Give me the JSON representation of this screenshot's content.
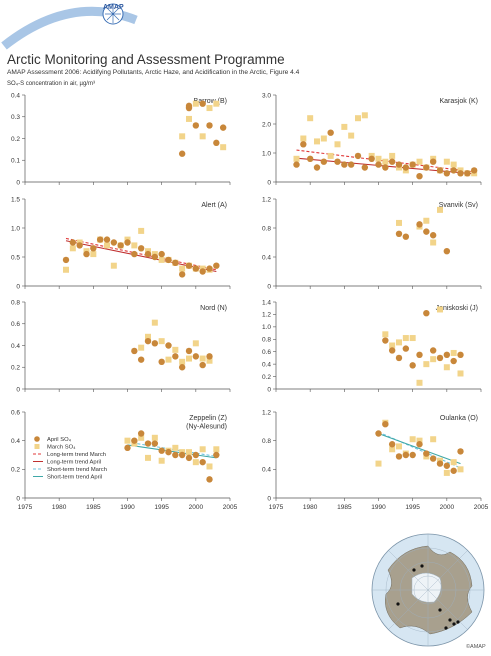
{
  "header": {
    "logo_text": "AMAP",
    "title": "Arctic Monitoring and Assessment Programme",
    "subtitle": "AMAP Assessment 2006: Acidifying Pollutants, Arctic Haze, and Acidification in the Arctic, Figure 4.4",
    "unit_label": "SO₄-S concentration in air, µg/m³"
  },
  "credit": "©AMAP",
  "colors": {
    "april": "#c8873a",
    "march": "#f2d48a",
    "longtrend_march": "#e03a3a",
    "longtrend_april": "#c03030",
    "shorttrend_march": "#6ec3df",
    "shorttrend_april": "#3fa8a8",
    "axis": "#555555"
  },
  "legend": [
    {
      "kind": "april",
      "label": "April SO₄"
    },
    {
      "kind": "march",
      "label": "March SO₄"
    },
    {
      "kind": "longtrend_march",
      "label": "Long-term trend March"
    },
    {
      "kind": "longtrend_april",
      "label": "Long-term trend April"
    },
    {
      "kind": "shorttrend_march",
      "label": "Short-term trend March"
    },
    {
      "kind": "shorttrend_april",
      "label": "Short-term trend April"
    }
  ],
  "chart_data": [
    {
      "type": "scatter",
      "title": "Barrow (B)",
      "xlim": [
        1975,
        2005
      ],
      "ylim": [
        0,
        0.4
      ],
      "yticks": [
        "0",
        "0.1",
        "0.2",
        "0.3",
        "0.4"
      ],
      "xticks": [],
      "series": [
        {
          "name": "April SO₄",
          "x": [
            1998,
            1999,
            2000,
            2001,
            2002,
            2003,
            2004,
            1999
          ],
          "y": [
            0.13,
            0.34,
            0.26,
            0.36,
            0.26,
            0.18,
            0.25,
            0.35
          ]
        },
        {
          "name": "March SO₄",
          "x": [
            1998,
            1999,
            2000,
            2001,
            2002,
            2003,
            2004
          ],
          "y": [
            0.21,
            0.29,
            0.36,
            0.21,
            0.34,
            0.36,
            0.16
          ]
        }
      ],
      "trends": []
    },
    {
      "type": "scatter",
      "title": "Karasjok (K)",
      "xlim": [
        1975,
        2005
      ],
      "ylim": [
        0,
        3.0
      ],
      "yticks": [
        "0",
        "1.0",
        "2.0",
        "3.0"
      ],
      "xticks": [],
      "series": [
        {
          "name": "April SO₄",
          "x": [
            1978,
            1979,
            1980,
            1981,
            1982,
            1983,
            1984,
            1985,
            1986,
            1987,
            1988,
            1989,
            1990,
            1991,
            1992,
            1993,
            1994,
            1995,
            1996,
            1997,
            1998,
            1999,
            2000,
            2001,
            2002,
            2003,
            2004
          ],
          "y": [
            0.6,
            1.3,
            0.8,
            0.5,
            0.7,
            1.7,
            0.7,
            0.6,
            0.6,
            0.9,
            0.5,
            0.8,
            0.6,
            0.5,
            0.7,
            0.6,
            0.5,
            0.6,
            0.2,
            0.5,
            0.7,
            0.4,
            0.3,
            0.4,
            0.3,
            0.3,
            0.4
          ]
        },
        {
          "name": "March SO₄",
          "x": [
            1978,
            1979,
            1980,
            1981,
            1982,
            1983,
            1984,
            1985,
            1986,
            1987,
            1988,
            1989,
            1990,
            1991,
            1992,
            1993,
            1994,
            1995,
            1996,
            1997,
            1998,
            1999,
            2000,
            2001,
            2002,
            2003,
            2004
          ],
          "y": [
            0.8,
            1.5,
            2.2,
            1.4,
            1.5,
            0.9,
            1.3,
            1.9,
            1.6,
            2.2,
            2.3,
            0.9,
            0.8,
            0.7,
            0.9,
            0.5,
            0.4,
            0.6,
            0.7,
            0.5,
            0.8,
            0.4,
            0.7,
            0.6,
            0.4,
            0.3,
            0.3
          ]
        }
      ],
      "trends": [
        {
          "kind": "longtrend_march",
          "x": [
            1978,
            2004
          ],
          "y": [
            1.1,
            0.35
          ]
        },
        {
          "kind": "longtrend_april",
          "x": [
            1978,
            2004
          ],
          "y": [
            0.82,
            0.28
          ]
        }
      ]
    },
    {
      "type": "scatter",
      "title": "Alert (A)",
      "xlim": [
        1975,
        2005
      ],
      "ylim": [
        0,
        1.5
      ],
      "yticks": [
        "0",
        "0.5",
        "1.0",
        "1.5"
      ],
      "xticks": [],
      "series": [
        {
          "name": "April SO₄",
          "x": [
            1981,
            1982,
            1983,
            1984,
            1985,
            1986,
            1987,
            1988,
            1989,
            1990,
            1991,
            1992,
            1993,
            1994,
            1995,
            1996,
            1997,
            1998,
            1999,
            2000,
            2001,
            2002,
            2003
          ],
          "y": [
            0.45,
            0.75,
            0.7,
            0.55,
            0.65,
            0.8,
            0.8,
            0.75,
            0.7,
            0.75,
            0.55,
            0.65,
            0.55,
            0.5,
            0.55,
            0.45,
            0.4,
            0.2,
            0.35,
            0.3,
            0.25,
            0.3,
            0.35
          ]
        },
        {
          "name": "March SO₄",
          "x": [
            1981,
            1982,
            1983,
            1984,
            1985,
            1986,
            1987,
            1988,
            1989,
            1990,
            1991,
            1992,
            1993,
            1994,
            1995,
            1996,
            1997,
            1998,
            1999,
            2000,
            2001,
            2002
          ],
          "y": [
            0.28,
            0.65,
            0.75,
            0.6,
            0.55,
            0.8,
            0.7,
            0.35,
            0.7,
            0.8,
            0.7,
            0.95,
            0.6,
            0.55,
            0.45,
            0.45,
            0.4,
            0.3,
            0.35,
            0.3,
            0.3,
            0.28
          ]
        }
      ],
      "trends": [
        {
          "kind": "longtrend_march",
          "x": [
            1981,
            2003
          ],
          "y": [
            0.82,
            0.28
          ]
        },
        {
          "kind": "longtrend_april",
          "x": [
            1981,
            2003
          ],
          "y": [
            0.78,
            0.25
          ]
        }
      ]
    },
    {
      "type": "scatter",
      "title": "Svanvik (Sv)",
      "xlim": [
        1975,
        2005
      ],
      "ylim": [
        0,
        1.2
      ],
      "yticks": [
        "0",
        "0.4",
        "0.8",
        "1.2"
      ],
      "xticks": [],
      "series": [
        {
          "name": "April SO₄",
          "x": [
            1993,
            1994,
            1996,
            1997,
            1998,
            2000
          ],
          "y": [
            0.72,
            0.68,
            0.85,
            0.75,
            0.7,
            0.48
          ]
        },
        {
          "name": "March SO₄",
          "x": [
            1993,
            1996,
            1997,
            1998,
            1999
          ],
          "y": [
            0.87,
            0.82,
            0.9,
            0.6,
            1.05
          ]
        }
      ],
      "trends": []
    },
    {
      "type": "scatter",
      "title": "Nord (N)",
      "xlim": [
        1975,
        2005
      ],
      "ylim": [
        0,
        0.8
      ],
      "yticks": [
        "0",
        "0.2",
        "0.4",
        "0.6",
        "0.8"
      ],
      "xticks": [],
      "series": [
        {
          "name": "April SO₄",
          "x": [
            1991,
            1992,
            1993,
            1994,
            1995,
            1996,
            1997,
            1998,
            1999,
            2000,
            2001,
            2002
          ],
          "y": [
            0.35,
            0.27,
            0.44,
            0.42,
            0.25,
            0.4,
            0.3,
            0.2,
            0.35,
            0.3,
            0.22,
            0.3
          ]
        },
        {
          "name": "March SO₄",
          "x": [
            1992,
            1993,
            1994,
            1995,
            1996,
            1997,
            1998,
            1999,
            2000,
            2001,
            2002
          ],
          "y": [
            0.38,
            0.48,
            0.61,
            0.44,
            0.27,
            0.36,
            0.25,
            0.28,
            0.42,
            0.28,
            0.26
          ]
        }
      ],
      "trends": []
    },
    {
      "type": "scatter",
      "title": "Janiskoski (J)",
      "xlim": [
        1975,
        2005
      ],
      "ylim": [
        0,
        1.4
      ],
      "yticks": [
        "0",
        "0.2",
        "0.4",
        "0.6",
        "0.8",
        "1.0",
        "1.2",
        "1.4"
      ],
      "xticks": [],
      "series": [
        {
          "name": "April SO₄",
          "x": [
            1991,
            1992,
            1993,
            1994,
            1995,
            1996,
            1997,
            1998,
            1999,
            2000,
            2001,
            2002
          ],
          "y": [
            0.78,
            0.62,
            0.5,
            0.65,
            0.38,
            0.55,
            1.22,
            0.62,
            0.5,
            0.55,
            0.45,
            0.55
          ]
        },
        {
          "name": "March SO₄",
          "x": [
            1991,
            1992,
            1993,
            1994,
            1995,
            1996,
            1997,
            1998,
            1999,
            2000,
            2001,
            2002
          ],
          "y": [
            0.88,
            0.7,
            0.75,
            0.82,
            0.82,
            0.1,
            0.4,
            0.48,
            1.28,
            0.35,
            0.58,
            0.25
          ]
        }
      ],
      "trends": []
    },
    {
      "type": "scatter",
      "title": "Zeppelin (Z)\n(Ny-Alesund)",
      "xlim": [
        1975,
        2005
      ],
      "ylim": [
        0,
        0.6
      ],
      "yticks": [
        "0",
        "0.2",
        "0.4",
        "0.6"
      ],
      "xticks": [
        "1975",
        "1980",
        "1985",
        "1990",
        "1995",
        "2000",
        "2005"
      ],
      "series": [
        {
          "name": "April SO₄",
          "x": [
            1990,
            1991,
            1992,
            1993,
            1994,
            1995,
            1996,
            1997,
            1998,
            1999,
            2000,
            2001,
            2002,
            2003
          ],
          "y": [
            0.35,
            0.4,
            0.45,
            0.38,
            0.38,
            0.33,
            0.32,
            0.3,
            0.3,
            0.28,
            0.3,
            0.25,
            0.13,
            0.3
          ]
        },
        {
          "name": "March SO₄",
          "x": [
            1990,
            1991,
            1992,
            1993,
            1994,
            1995,
            1996,
            1997,
            1998,
            1999,
            2000,
            2001,
            2002,
            2003
          ],
          "y": [
            0.4,
            0.38,
            0.42,
            0.28,
            0.42,
            0.26,
            0.33,
            0.35,
            0.32,
            0.32,
            0.25,
            0.34,
            0.22,
            0.34
          ]
        }
      ],
      "trends": [
        {
          "kind": "shorttrend_march",
          "x": [
            1990,
            2003
          ],
          "y": [
            0.39,
            0.29
          ]
        },
        {
          "kind": "shorttrend_april",
          "x": [
            1990,
            2003
          ],
          "y": [
            0.37,
            0.28
          ]
        }
      ]
    },
    {
      "type": "scatter",
      "title": "Oulanka (O)",
      "xlim": [
        1975,
        2005
      ],
      "ylim": [
        0,
        1.2
      ],
      "yticks": [
        "0",
        "0.4",
        "0.8",
        "1.2"
      ],
      "xticks": [
        "1975",
        "1980",
        "1985",
        "1990",
        "1995",
        "2000",
        "2005"
      ],
      "series": [
        {
          "name": "April SO₄",
          "x": [
            1990,
            1991,
            1992,
            1993,
            1994,
            1995,
            1996,
            1997,
            1998,
            1999,
            2000,
            2001,
            2002
          ],
          "y": [
            0.9,
            1.03,
            0.75,
            0.58,
            0.6,
            0.6,
            0.75,
            0.62,
            0.55,
            0.48,
            0.45,
            0.38,
            0.65
          ]
        },
        {
          "name": "March SO₄",
          "x": [
            1990,
            1991,
            1992,
            1993,
            1994,
            1995,
            1996,
            1997,
            1998,
            1999,
            2000,
            2001,
            2002
          ],
          "y": [
            0.48,
            1.05,
            0.68,
            0.72,
            0.62,
            0.82,
            0.8,
            0.58,
            0.82,
            0.52,
            0.35,
            0.5,
            0.4
          ]
        }
      ],
      "trends": [
        {
          "kind": "shorttrend_march",
          "x": [
            1990,
            2002
          ],
          "y": [
            0.92,
            0.42
          ]
        },
        {
          "kind": "shorttrend_april",
          "x": [
            1990,
            2002
          ],
          "y": [
            0.9,
            0.48
          ]
        }
      ]
    }
  ]
}
